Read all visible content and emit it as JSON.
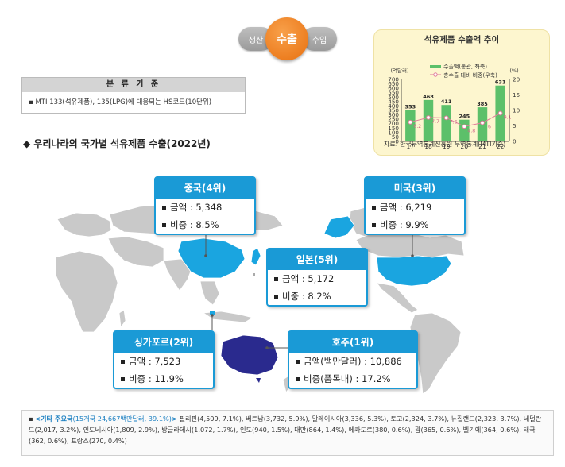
{
  "tabs": {
    "left": "생산",
    "center": "수출",
    "right": "수입"
  },
  "classification": {
    "title": "분 류 기 준",
    "text": "MTI 133(석유제품), 135(LPG)에 대응되는 HS코드(10단위)"
  },
  "section_title": "우리나라의 국가별 석유제품 수출(2022년)",
  "countries": [
    {
      "key": "china",
      "title": "중국(4위)",
      "rows": [
        "금액 : 5,348",
        "비중 : 8.5%"
      ]
    },
    {
      "key": "usa",
      "title": "미국(3위)",
      "rows": [
        "금액 : 6,219",
        "비중 : 9.9%"
      ]
    },
    {
      "key": "japan",
      "title": "일본(5위)",
      "rows": [
        "금액 : 5,172",
        "비중 : 8.2%"
      ]
    },
    {
      "key": "singapore",
      "title": "싱가포르(2위)",
      "rows": [
        "금액 : 7,523",
        "비중 : 11.9%"
      ]
    },
    {
      "key": "australia",
      "title": "호주(1위)",
      "rows": [
        "금액(백만달러) : 10,886",
        "비중(품목내) : 17.2%"
      ]
    }
  ],
  "footnote": {
    "label": "<기타 주요국",
    "detail": "(15개국 24,667백만달러, 39.1%)",
    "close": ">",
    "text": " 필리핀(4,509, 7.1%), 베트남(3,732, 5.9%), 말레이시아(3,336, 5.3%), 토고(2,324, 3.7%), 뉴질랜드(2,323, 3.7%), 네덜란드(2,017, 3.2%), 인도네시아(1,809, 2.9%), 방글라데시(1,072, 1.7%), 인도(940, 1.5%), 대만(864, 1.4%), 에콰도르(380, 0.6%), 괌(365, 0.6%), 벨기에(364, 0.6%), 태국(362, 0.6%), 프랑스(270, 0.4%)"
  },
  "colors": {
    "accent": "#1a9ad6",
    "bar": "#5cc06a",
    "line": "#e07b9a",
    "map_land": "#c8c8c8",
    "highlight_country": "#1aa5e0",
    "australia": "#2a2a8e"
  },
  "chart_data": {
    "type": "bar",
    "title": "석유제품 수출액 추이",
    "source": "자료: 한국무역통계진흥원 무역통계(MTI기준)",
    "categories": [
      "17",
      "18",
      "19",
      "20",
      "21",
      "22"
    ],
    "series": [
      {
        "name": "수출액(통관, 좌축)",
        "type": "bar",
        "values": [
          353,
          468,
          411,
          245,
          385,
          631
        ]
      },
      {
        "name": "총수출 대비 비중(우축)",
        "type": "line",
        "values": [
          6.2,
          7.7,
          7.6,
          4.8,
          6.0,
          9.1
        ]
      }
    ],
    "ylabel_left": "(억달러)",
    "ylabel_right": "(%)",
    "ylim_left": [
      0,
      700
    ],
    "ylim_right": [
      0,
      20
    ],
    "yticks_left": [
      "0",
      "50",
      "100",
      "150",
      "200",
      "250",
      "300",
      "350",
      "400",
      "450",
      "500",
      "550",
      "600",
      "650",
      "700"
    ],
    "yticks_right": [
      "0",
      "5",
      "10",
      "15",
      "20"
    ]
  }
}
